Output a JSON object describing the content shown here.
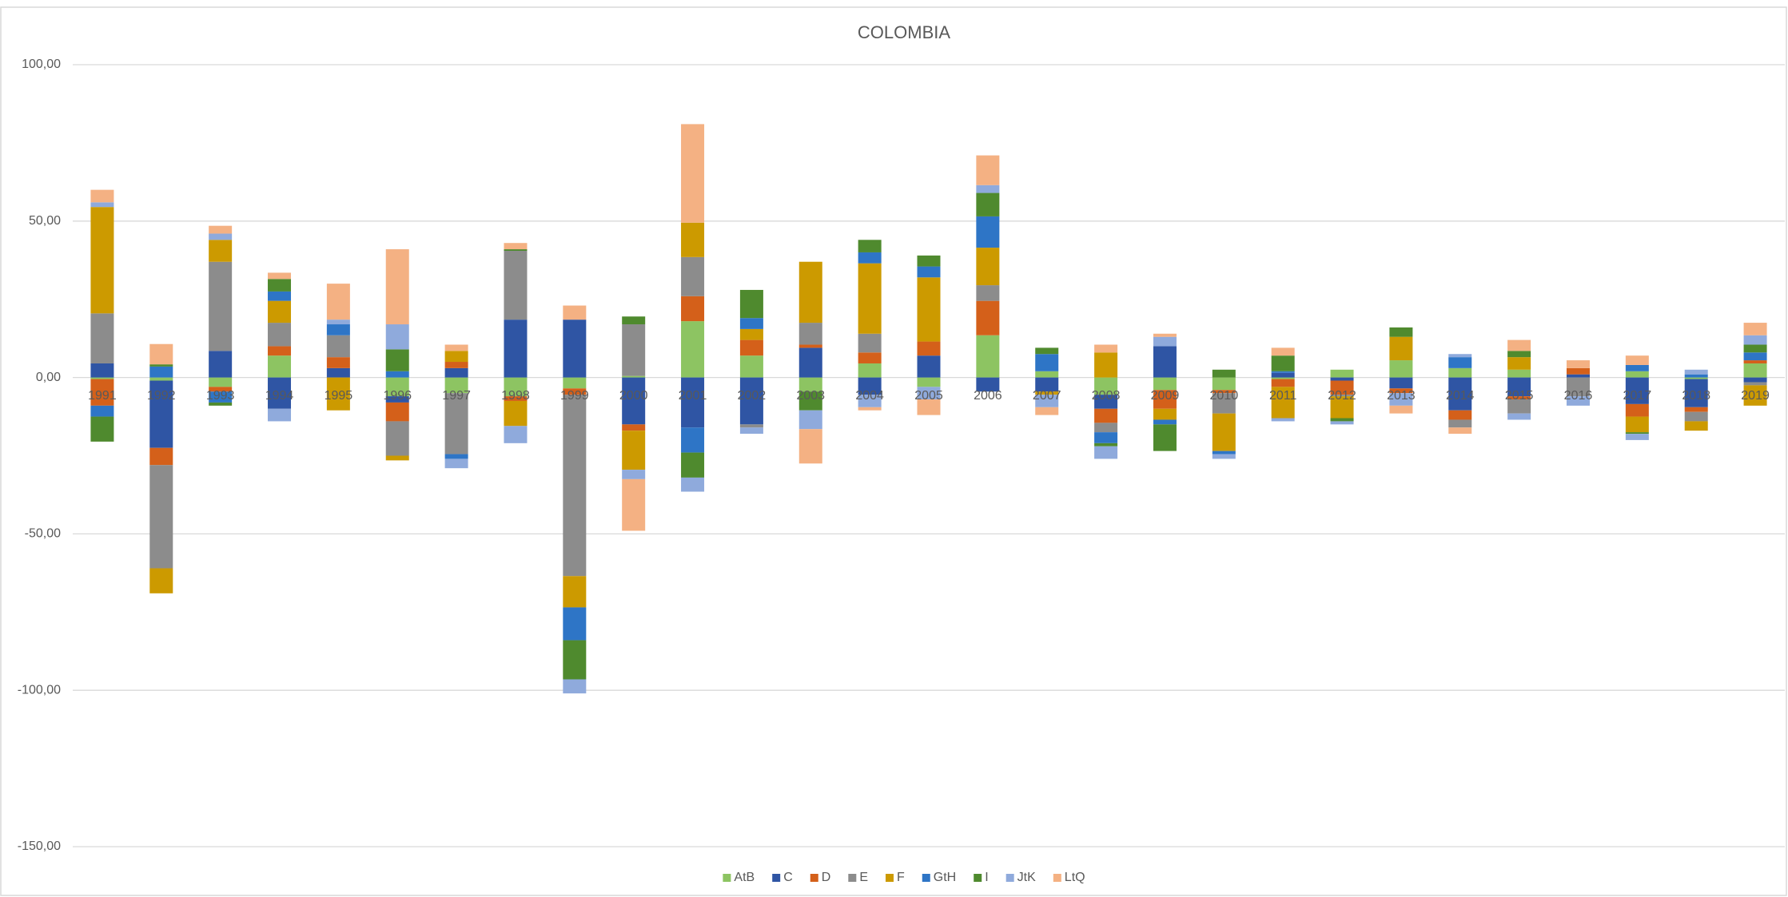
{
  "chart_data": {
    "type": "bar",
    "stacked": true,
    "title": "COLOMBIA",
    "categories": [
      "1991",
      "1992",
      "1993",
      "1994",
      "1995",
      "1996",
      "1997",
      "1998",
      "1999",
      "2000",
      "2001",
      "2002",
      "2003",
      "2004",
      "2005",
      "2006",
      "2007",
      "2008",
      "2009",
      "2010",
      "2011",
      "2012",
      "2013",
      "2014",
      "2015",
      "2016",
      "2017",
      "2018",
      "2019"
    ],
    "series": [
      {
        "name": "AtB",
        "color": "#8dc462",
        "values": [
          -0.5,
          -1,
          -3,
          7,
          0,
          -6,
          -5,
          -6,
          -3.5,
          0.5,
          18,
          7,
          -4.5,
          4.5,
          -3,
          13.5,
          2,
          -5.5,
          -4,
          -4,
          -0.5,
          2.5,
          5.5,
          3,
          2.5,
          0,
          2,
          -0.5,
          4.5
        ]
      },
      {
        "name": "C",
        "color": "#2f55a4",
        "values": [
          4.5,
          -21.5,
          8.5,
          -10,
          3,
          -2,
          3,
          18.5,
          18.5,
          -15,
          -16,
          -15,
          9.5,
          -5.5,
          7,
          -4.5,
          -4.5,
          -4.5,
          10,
          0,
          1.5,
          -1,
          -3.5,
          -10.5,
          -6,
          1,
          -8.5,
          -9,
          -1.5
        ]
      },
      {
        "name": "D",
        "color": "#d4601a",
        "values": [
          -8.5,
          -5.5,
          -1.5,
          3,
          3.5,
          -6,
          2,
          -1.5,
          -2,
          -2,
          8,
          5,
          1,
          3.5,
          4.5,
          11,
          0,
          -4.5,
          -6,
          -1,
          -2.5,
          -4.5,
          -1.5,
          -3,
          -1,
          2,
          -4,
          -1.5,
          1
        ]
      },
      {
        "name": "E",
        "color": "#8c8c8c",
        "values": [
          16,
          -33,
          28.5,
          7.5,
          7,
          -11,
          -19.5,
          22,
          -58,
          16.5,
          12.5,
          -1,
          7,
          6,
          0,
          5,
          0,
          -3,
          0,
          -6.5,
          0,
          -0.5,
          0,
          -2.5,
          -4.5,
          -6,
          0,
          -3,
          -1
        ]
      },
      {
        "name": "F",
        "color": "#cc9a00",
        "values": [
          34,
          -8,
          7,
          7,
          -10.5,
          -1.5,
          3.5,
          -8,
          -10,
          -12.5,
          11,
          3.5,
          19.5,
          22.5,
          20.5,
          12,
          -1,
          8,
          -3.5,
          -12,
          -10,
          -7,
          7.5,
          0,
          4,
          0,
          -5,
          -3,
          -6.5
        ]
      },
      {
        "name": "GtH",
        "color": "#2e75c6",
        "values": [
          -3.5,
          3.5,
          -3.5,
          3,
          3.5,
          2,
          -1.5,
          0,
          -10.5,
          0,
          -8,
          3.5,
          0,
          3.5,
          3.5,
          10,
          5.5,
          -3.5,
          -1.5,
          -1,
          0.5,
          0,
          0,
          3.5,
          0,
          0,
          2,
          1,
          2.5
        ]
      },
      {
        "name": "I",
        "color": "#4f8a2e",
        "values": [
          -8,
          0.7,
          -1,
          4,
          0,
          7,
          0,
          0.5,
          -12.5,
          2.5,
          -8,
          9,
          -6,
          4,
          3.5,
          7.5,
          2,
          -1,
          -8.5,
          2.5,
          5,
          -1,
          3,
          0,
          2,
          0,
          -0.5,
          0,
          2.5
        ]
      },
      {
        "name": "JtK",
        "color": "#8faadc",
        "values": [
          1.5,
          0,
          2,
          -4,
          1.5,
          8,
          -3,
          -5.5,
          -4.5,
          -3,
          -4.5,
          -2,
          -6,
          -4,
          -4,
          2.5,
          -4,
          -4,
          3,
          -1.5,
          -1,
          -1,
          -4,
          1,
          -2,
          -3,
          -2,
          1.5,
          3
        ]
      },
      {
        "name": "LtQ",
        "color": "#f4b183",
        "values": [
          4,
          6.5,
          2.5,
          2,
          11.5,
          24,
          2,
          2,
          4.5,
          -16.5,
          31.5,
          0,
          -11,
          -1,
          -5,
          9.5,
          -2.5,
          2.5,
          1,
          0,
          2.5,
          0,
          -2.5,
          -2,
          3.5,
          2.5,
          3,
          0,
          4
        ]
      }
    ],
    "ylim": [
      -150,
      100
    ],
    "yticks": [
      {
        "value": -150,
        "label": "-150,00"
      },
      {
        "value": -100,
        "label": "-100,00"
      },
      {
        "value": -50,
        "label": "-50,00"
      },
      {
        "value": 0,
        "label": "0,00"
      },
      {
        "value": 50,
        "label": "50,00"
      },
      {
        "value": 100,
        "label": "100,00"
      }
    ],
    "grid": true,
    "legend": "bottom"
  }
}
